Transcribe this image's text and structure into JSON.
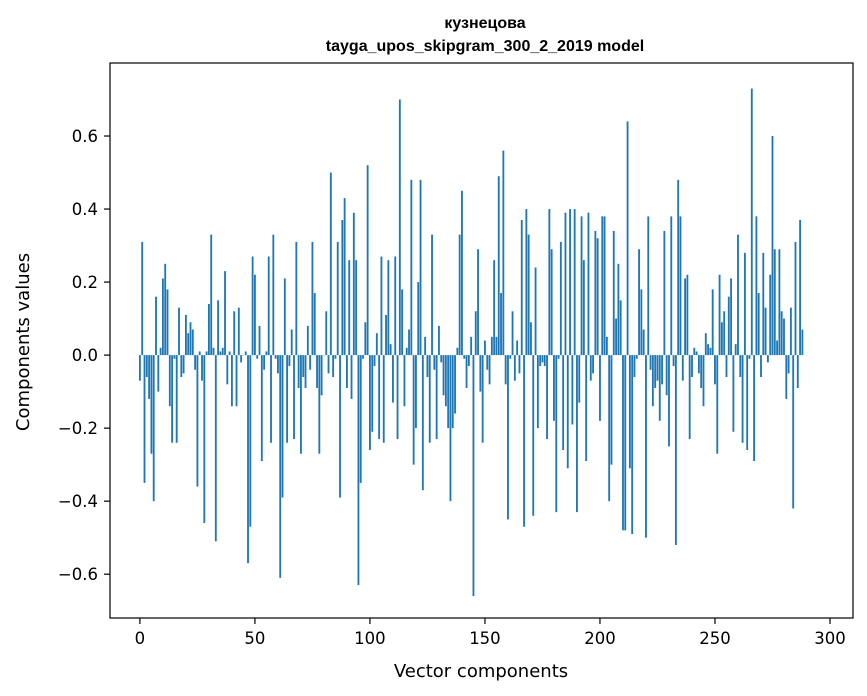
{
  "chart_data": {
    "type": "bar",
    "title": "кузнецова",
    "subtitle": "tayga_upos_skipgram_300_2_2019 model",
    "xlabel": "Vector components",
    "ylabel": "Components values",
    "xlim": [
      -13,
      310
    ],
    "ylim": [
      -0.72,
      0.8
    ],
    "xticks": [
      0,
      50,
      100,
      150,
      200,
      250,
      300
    ],
    "yticks": [
      -0.6,
      -0.4,
      -0.2,
      0.0,
      0.2,
      0.4,
      0.6
    ],
    "xtick_labels": [
      "0",
      "50",
      "100",
      "150",
      "200",
      "250",
      "300"
    ],
    "ytick_labels": [
      "−0.6",
      "−0.4",
      "−0.2",
      "0.0",
      "0.2",
      "0.4",
      "0.6"
    ],
    "grid": false,
    "bar_color": "#1f77b4",
    "values": [
      -0.07,
      0.31,
      -0.35,
      -0.06,
      -0.12,
      -0.27,
      -0.4,
      0.16,
      -0.1,
      0.02,
      0.21,
      0.25,
      0.18,
      -0.14,
      -0.24,
      -0.01,
      -0.24,
      0.13,
      -0.06,
      -0.05,
      0.11,
      0.06,
      0.09,
      0.07,
      -0.04,
      -0.36,
      0.01,
      -0.07,
      -0.46,
      0.01,
      0.14,
      0.33,
      0.02,
      -0.51,
      0.15,
      0.01,
      0.02,
      0.23,
      -0.08,
      0.01,
      -0.14,
      0.12,
      -0.14,
      0.13,
      -0.02,
      0.0,
      0.01,
      -0.57,
      -0.47,
      0.27,
      0.22,
      -0.01,
      0.08,
      -0.29,
      -0.04,
      0.01,
      0.27,
      -0.24,
      0.33,
      -0.01,
      -0.05,
      -0.61,
      -0.39,
      0.21,
      -0.24,
      -0.03,
      0.07,
      -0.23,
      0.31,
      -0.09,
      -0.27,
      -0.06,
      -0.09,
      0.08,
      -0.04,
      0.31,
      0.17,
      -0.09,
      -0.27,
      -0.11,
      0.0,
      0.12,
      -0.05,
      0.5,
      -0.06,
      -0.01,
      0.31,
      -0.39,
      0.37,
      0.43,
      -0.09,
      0.26,
      -0.12,
      0.39,
      0.26,
      -0.63,
      -0.35,
      -0.01,
      0.09,
      0.52,
      -0.26,
      -0.21,
      -0.03,
      0.06,
      -0.23,
      0.27,
      -0.24,
      0.11,
      0.26,
      0.03,
      -0.13,
      0.27,
      -0.23,
      0.7,
      0.18,
      -0.14,
      0.02,
      0.07,
      0.48,
      -0.3,
      -0.2,
      0.2,
      0.48,
      -0.37,
      0.05,
      -0.06,
      -0.24,
      0.33,
      -0.04,
      -0.23,
      0.08,
      -0.02,
      -0.11,
      -0.14,
      -0.2,
      -0.4,
      -0.2,
      -0.16,
      0.02,
      0.33,
      0.45,
      -0.01,
      -0.09,
      -0.03,
      0.05,
      -0.66,
      0.12,
      0.29,
      -0.1,
      -0.24,
      0.04,
      -0.04,
      -0.08,
      0.05,
      0.26,
      0.05,
      0.49,
      0.17,
      0.56,
      -0.08,
      -0.45,
      -0.01,
      0.12,
      -0.07,
      0.04,
      -0.05,
      0.37,
      -0.47,
      0.4,
      0.33,
      0.09,
      -0.44,
      0.24,
      -0.2,
      -0.03,
      -0.02,
      -0.03,
      -0.23,
      0.4,
      0.29,
      -0.18,
      -0.43,
      -0.01,
      0.31,
      -0.26,
      0.39,
      -0.31,
      0.4,
      -0.19,
      0.4,
      -0.43,
      -0.13,
      0.38,
      0.26,
      -0.29,
      0.39,
      -0.07,
      -0.05,
      0.34,
      0.32,
      -0.18,
      0.38,
      0.38,
      0.05,
      -0.4,
      -0.3,
      0.34,
      0.1,
      0.25,
      0.15,
      -0.48,
      -0.48,
      0.64,
      -0.31,
      -0.49,
      -0.06,
      -0.01,
      0.29,
      0.18,
      0.07,
      -0.5,
      0.38,
      -0.04,
      -0.14,
      -0.09,
      -0.07,
      -0.18,
      -0.08,
      0.34,
      -0.11,
      -0.25,
      0.38,
      -0.03,
      -0.52,
      0.48,
      0.38,
      -0.07,
      0.21,
      0.22,
      -0.23,
      -0.06,
      0.02,
      0.01,
      -0.05,
      -0.09,
      -0.14,
      0.06,
      0.03,
      0.02,
      0.18,
      -0.08,
      -0.27,
      0.22,
      0.09,
      0.12,
      -0.06,
      0.16,
      0.21,
      -0.21,
      0.03,
      0.33,
      -0.06,
      -0.24,
      0.28,
      -0.26,
      -0.01,
      0.73,
      -0.29,
      0.38,
      0.17,
      -0.06,
      0.28,
      0.13,
      -0.02,
      0.22,
      0.6,
      0.29,
      0.04,
      0.29,
      0.12,
      0.1,
      -0.12,
      -0.05,
      0.13,
      -0.42,
      0.31,
      -0.09,
      0.37,
      0.07
    ]
  }
}
